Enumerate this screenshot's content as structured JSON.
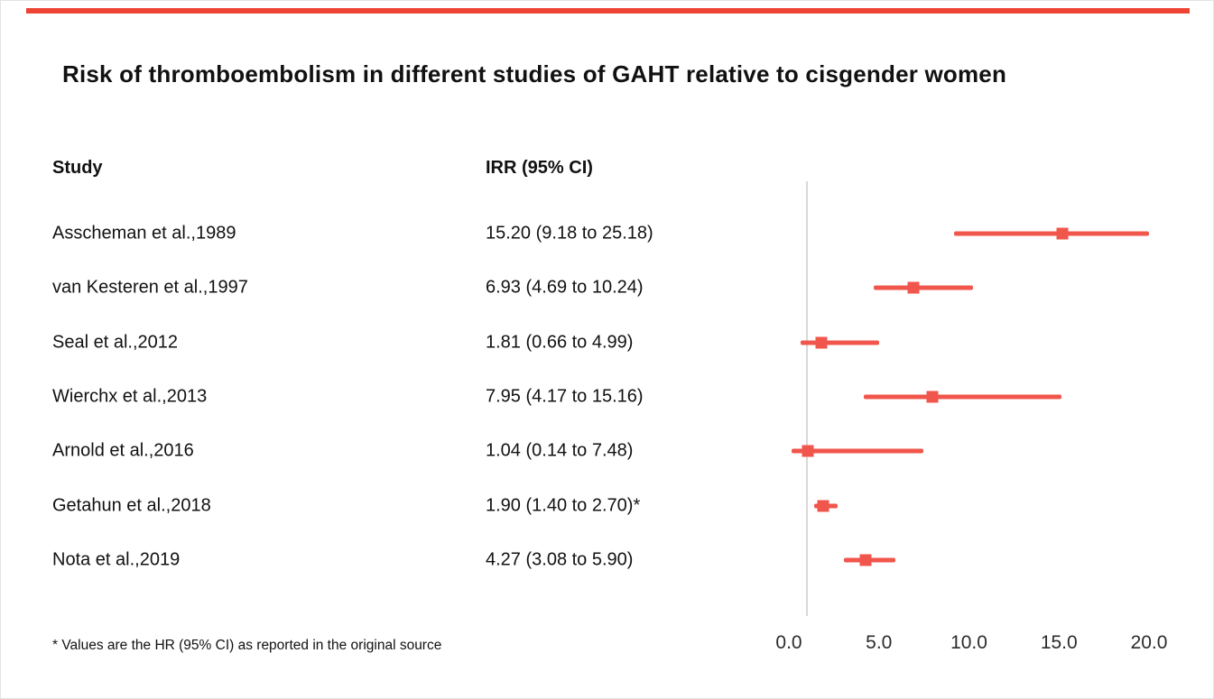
{
  "colors": {
    "accent_bar": "#ee4434",
    "series": "#f0564b",
    "axis_line": "#d8d8d8",
    "text": "#141414"
  },
  "chart_data": {
    "type": "forest",
    "title": "Risk of thromboembolism in different studies of GAHT relative to cisgender women",
    "column_headers": {
      "study": "Study",
      "irr": "IRR (95% CI)"
    },
    "xlim": [
      0,
      20
    ],
    "x_ticks": [
      0,
      5,
      10,
      15,
      20
    ],
    "x_tick_labels": [
      "0.0",
      "5.0",
      "10.0",
      "15.0",
      "20.0"
    ],
    "reference_line": 1.0,
    "grid": false,
    "studies": [
      {
        "label": "Asscheman et al.,1989",
        "display": "15.20 (9.18 to 25.18)",
        "est": 15.2,
        "lo": 9.18,
        "hi": 25.18
      },
      {
        "label": "van Kesteren et al.,1997",
        "display": "6.93 (4.69 to 10.24)",
        "est": 6.93,
        "lo": 4.69,
        "hi": 10.24
      },
      {
        "label": "Seal et al.,2012",
        "display": "1.81 (0.66 to 4.99)",
        "est": 1.81,
        "lo": 0.66,
        "hi": 4.99
      },
      {
        "label": "Wierchx et al.,2013",
        "display": "7.95 (4.17 to 15.16)",
        "est": 7.95,
        "lo": 4.17,
        "hi": 15.16
      },
      {
        "label": "Arnold et al.,2016",
        "display": "1.04 (0.14 to 7.48)",
        "est": 1.04,
        "lo": 0.14,
        "hi": 7.48
      },
      {
        "label": "Getahun et al.,2018",
        "display": "1.90 (1.40 to 2.70)*",
        "est": 1.9,
        "lo": 1.4,
        "hi": 2.7
      },
      {
        "label": "Nota et al.,2019",
        "display": "4.27 (3.08 to 5.90)",
        "est": 4.27,
        "lo": 3.08,
        "hi": 5.9
      }
    ],
    "footnote": "* Values are the HR (95% CI) as reported in the original source"
  }
}
